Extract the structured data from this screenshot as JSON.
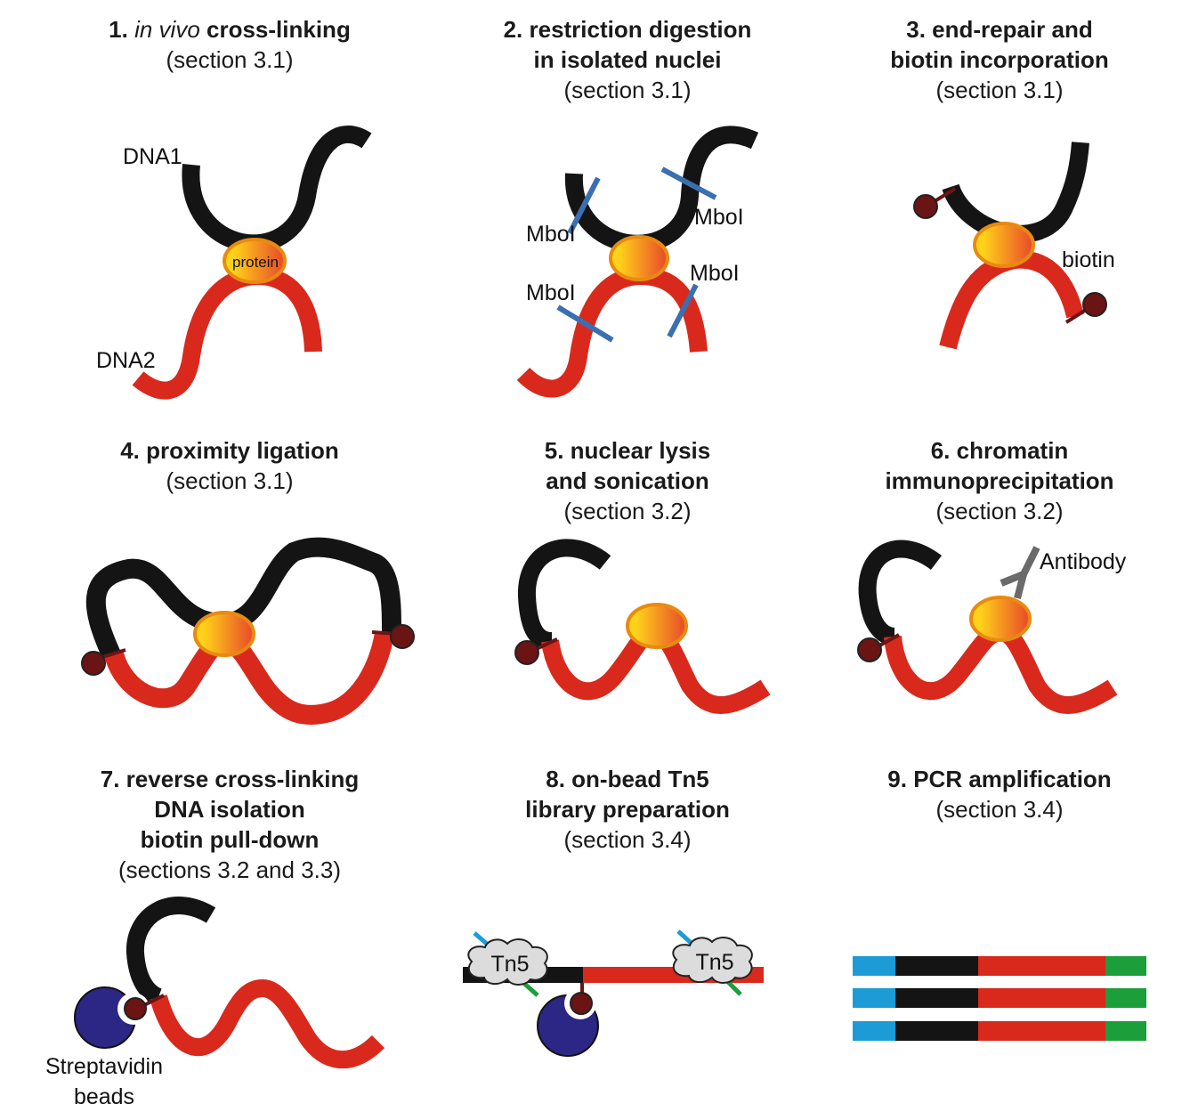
{
  "colors": {
    "dna1": "#141414",
    "dna2": "#d9291c",
    "biotin": "#6b1414",
    "restriction_site": "#3a6fb0",
    "protein_fill_a": "#ffd21a",
    "protein_fill_b": "#e8482a",
    "protein_outline": "#e88a10",
    "antibody": "#6a6a6a",
    "bead": "#2c2685",
    "tn5_fill": "#dcdcdc",
    "adapter_blue": "#1d9bd7",
    "adapter_green": "#1c9e3a"
  },
  "panels": [
    {
      "title_prefix": "1. ",
      "title_italic": "in vivo",
      "title_rest": " cross-linking",
      "subtitle": "(section 3.1)"
    },
    {
      "title_lines": [
        "2. restriction digestion",
        "in isolated nuclei"
      ],
      "subtitle": "(section 3.1)"
    },
    {
      "title_lines": [
        "3. end-repair and",
        "biotin incorporation"
      ],
      "subtitle": "(section 3.1)"
    },
    {
      "title_lines": [
        "4. proximity ligation"
      ],
      "subtitle": "(section 3.1)"
    },
    {
      "title_lines": [
        "5. nuclear lysis",
        "and sonication"
      ],
      "subtitle": "(section 3.2)"
    },
    {
      "title_lines": [
        "6. chromatin",
        "immunoprecipitation"
      ],
      "subtitle": "(section 3.2)"
    },
    {
      "title_lines": [
        "7. reverse cross-linking",
        "DNA isolation",
        "biotin pull-down"
      ],
      "subtitle": "(sections 3.2 and 3.3)"
    },
    {
      "title_lines": [
        "8. on-bead Tn5",
        "library preparation"
      ],
      "subtitle": "(section 3.4)"
    },
    {
      "title_lines": [
        "9. PCR amplification"
      ],
      "subtitle": "(section 3.4)"
    }
  ],
  "labels": {
    "dna1": "DNA1",
    "dna2": "DNA2",
    "protein": "protein",
    "mbol": "MboI",
    "biotin": "biotin",
    "antibody": "Antibody",
    "beads_line1": "Streptavidin",
    "beads_line2": "beads",
    "tn5": "Tn5"
  }
}
